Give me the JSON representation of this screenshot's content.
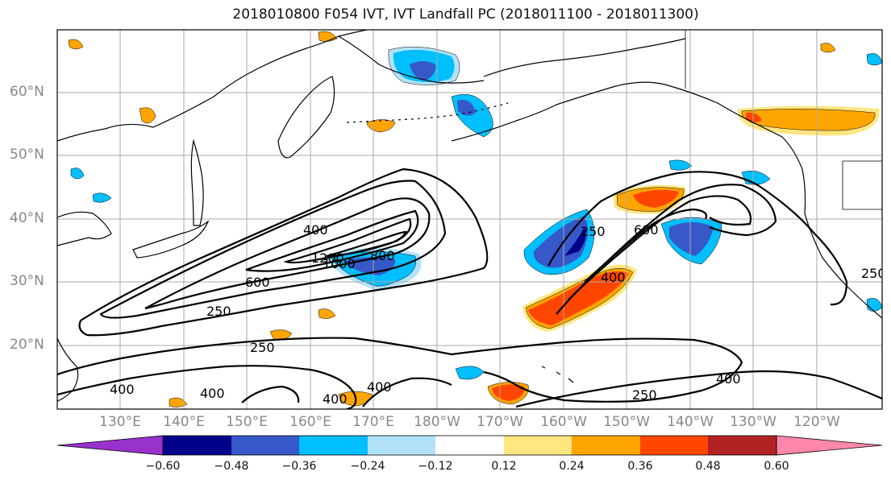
{
  "title": "2018010800 F054 IVT, IVT Landfall PC (2018011100 - 2018011300)",
  "lat_labels": [
    "60°N",
    "50°N",
    "40°N",
    "30°N",
    "20°N"
  ],
  "lon_labels": [
    "130°E",
    "140°E",
    "150°E",
    "160°E",
    "170°E",
    "180°W",
    "170°W",
    "160°W",
    "150°W",
    "140°W",
    "130°W",
    "120°W"
  ],
  "contour_labels": [
    "400",
    "1200",
    "1000",
    "800",
    "600",
    "250",
    "250",
    "400",
    "400",
    "400",
    "400",
    "250",
    "600",
    "400",
    "250",
    "400",
    "250"
  ],
  "colorbar": {
    "ticks": [
      "−0.60",
      "−0.48",
      "−0.36",
      "−0.24",
      "−0.12",
      "0.12",
      "0.24",
      "0.36",
      "0.48",
      "0.60"
    ],
    "colors": [
      "#9932cc",
      "#00008b",
      "#3658c8",
      "#00bfff",
      "#b2e2fa",
      "#ffffff",
      "#ffe680",
      "#ffa500",
      "#ff4500",
      "#b22222",
      "#ff88aa"
    ]
  },
  "colors": {
    "contour": "#000000",
    "coast": "#000000",
    "grid": "#aaaaaa",
    "neg_strong": "#3658c8",
    "neg_mid": "#00bfff",
    "neg_weak": "#b2e2fa",
    "pos_weak": "#ffe680",
    "pos_mid": "#ffa500",
    "pos_strong": "#ff4500"
  }
}
